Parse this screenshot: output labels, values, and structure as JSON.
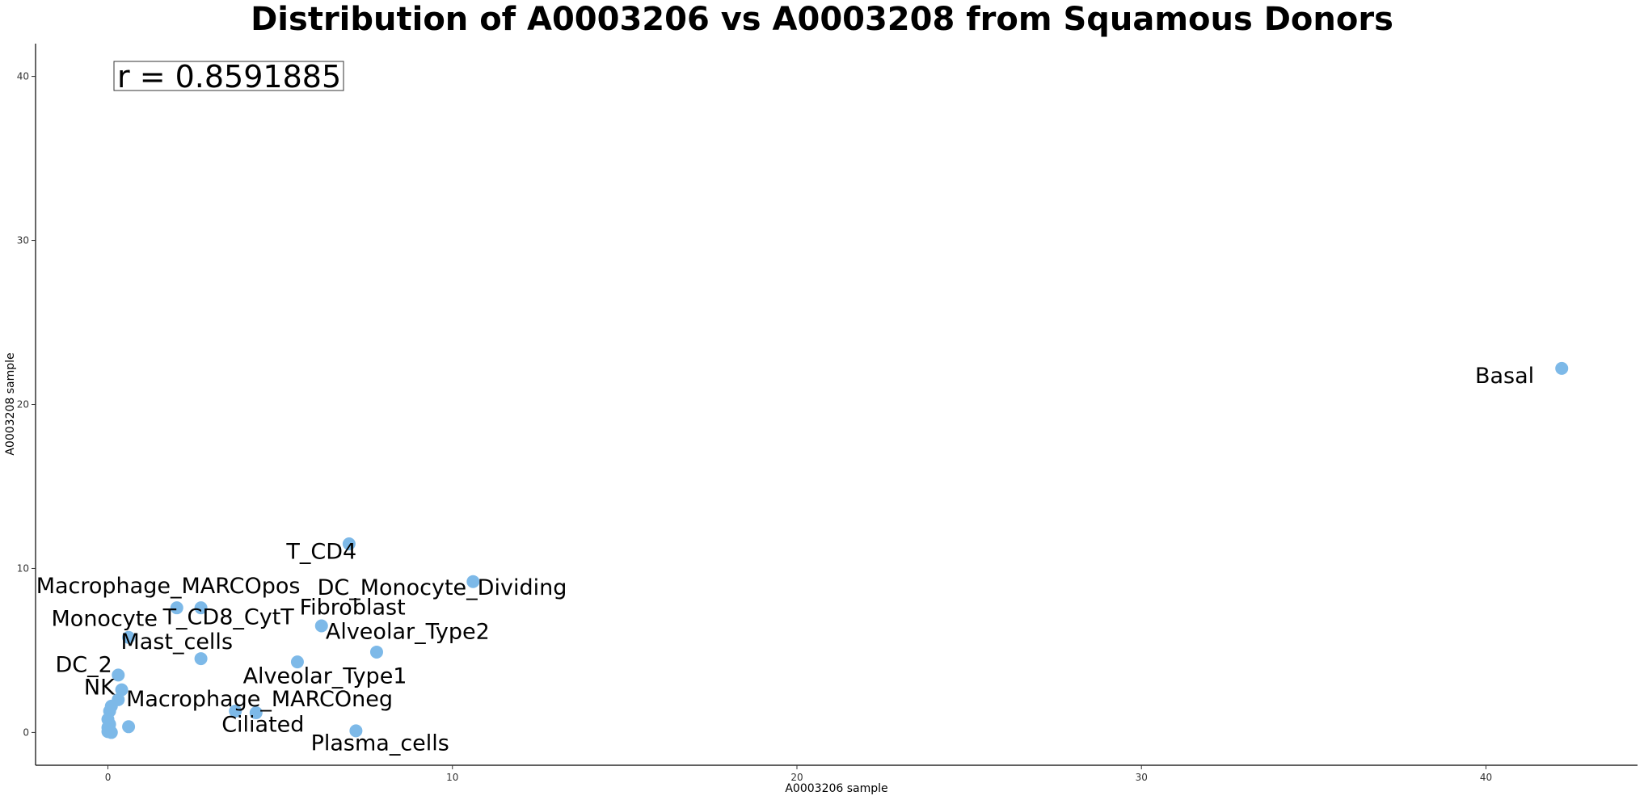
{
  "chart_data": {
    "type": "scatter",
    "title": "Distribution of A0003206 vs A0003208 from Squamous Donors",
    "xlabel": "A0003206 sample",
    "ylabel": "A0003208 sample",
    "xlim": [
      -2.1,
      44.4
    ],
    "ylim": [
      -2.0,
      42.0
    ],
    "xticks": [
      0,
      10,
      20,
      30,
      40
    ],
    "yticks": [
      0,
      10,
      20,
      30,
      40
    ],
    "annotation": "r = 0.8591885",
    "point_color": "#7DB9E8",
    "grid": false,
    "points": [
      {
        "x": 42.2,
        "y": 22.2,
        "label": "Basal",
        "lx": 41.4,
        "ly": 21.3,
        "anchor": "end"
      },
      {
        "x": 7.0,
        "y": 11.5,
        "label": "T_CD4",
        "lx": 6.2,
        "ly": 10.6,
        "anchor": "middle"
      },
      {
        "x": 10.6,
        "y": 9.2,
        "label": "DC_Monocyte_Dividing",
        "lx": 9.7,
        "ly": 8.4,
        "anchor": "middle"
      },
      {
        "x": 2.0,
        "y": 7.6,
        "label": "Macrophage_MARCOpos",
        "lx": 1.75,
        "ly": 8.5,
        "anchor": "middle"
      },
      {
        "x": 2.7,
        "y": 7.6,
        "label": "T_CD8_CytT",
        "lx": 3.5,
        "ly": 6.6,
        "anchor": "middle"
      },
      {
        "x": 6.2,
        "y": 6.5,
        "label": "Fibroblast",
        "lx": 7.1,
        "ly": 7.2,
        "anchor": "middle"
      },
      {
        "x": 0.6,
        "y": 5.8,
        "label": "Monocyte",
        "lx": -0.1,
        "ly": 6.5,
        "anchor": "middle"
      },
      {
        "x": 7.8,
        "y": 4.9,
        "label": "Alveolar_Type2",
        "lx": 8.7,
        "ly": 5.7,
        "anchor": "middle"
      },
      {
        "x": 2.7,
        "y": 4.5,
        "label": "Mast_cells",
        "lx": 2.0,
        "ly": 5.1,
        "anchor": "middle"
      },
      {
        "x": 5.5,
        "y": 4.3,
        "label": "Alveolar_Type1",
        "lx": 6.3,
        "ly": 3.0,
        "anchor": "middle"
      },
      {
        "x": 0.3,
        "y": 3.5,
        "label": "DC_2",
        "lx": -0.7,
        "ly": 3.7,
        "anchor": "middle"
      },
      {
        "x": 0.4,
        "y": 2.6,
        "label": "NK",
        "lx": -0.25,
        "ly": 2.3,
        "anchor": "middle"
      },
      {
        "x": 0.3,
        "y": 2.0,
        "label": "",
        "lx": 0,
        "ly": 0,
        "anchor": "middle"
      },
      {
        "x": 3.7,
        "y": 1.3,
        "label": "Macrophage_MARCOneg",
        "lx": 4.4,
        "ly": 1.6,
        "anchor": "middle"
      },
      {
        "x": 0.1,
        "y": 1.6,
        "label": "",
        "lx": 0,
        "ly": 0,
        "anchor": "middle"
      },
      {
        "x": 0.05,
        "y": 1.3,
        "label": "",
        "lx": 0,
        "ly": 0,
        "anchor": "middle"
      },
      {
        "x": 0.0,
        "y": 0.8,
        "label": "",
        "lx": 0,
        "ly": 0,
        "anchor": "middle"
      },
      {
        "x": 0.05,
        "y": 0.5,
        "label": "",
        "lx": 0,
        "ly": 0,
        "anchor": "middle"
      },
      {
        "x": 0.0,
        "y": 0.3,
        "label": "",
        "lx": 0,
        "ly": 0,
        "anchor": "middle"
      },
      {
        "x": 0.05,
        "y": 0.15,
        "label": "",
        "lx": 0,
        "ly": 0,
        "anchor": "middle"
      },
      {
        "x": 0.0,
        "y": 0.05,
        "label": "",
        "lx": 0,
        "ly": 0,
        "anchor": "middle"
      },
      {
        "x": 0.1,
        "y": 0.0,
        "label": "",
        "lx": 0,
        "ly": 0,
        "anchor": "middle"
      },
      {
        "x": 0.6,
        "y": 0.35,
        "label": "",
        "lx": 0,
        "ly": 0,
        "anchor": "middle"
      },
      {
        "x": 4.3,
        "y": 1.2,
        "label": "Ciliated",
        "lx": 4.5,
        "ly": 0.05,
        "anchor": "middle"
      },
      {
        "x": 7.2,
        "y": 0.1,
        "label": "Plasma_cells",
        "lx": 7.9,
        "ly": -1.1,
        "anchor": "middle"
      }
    ]
  }
}
